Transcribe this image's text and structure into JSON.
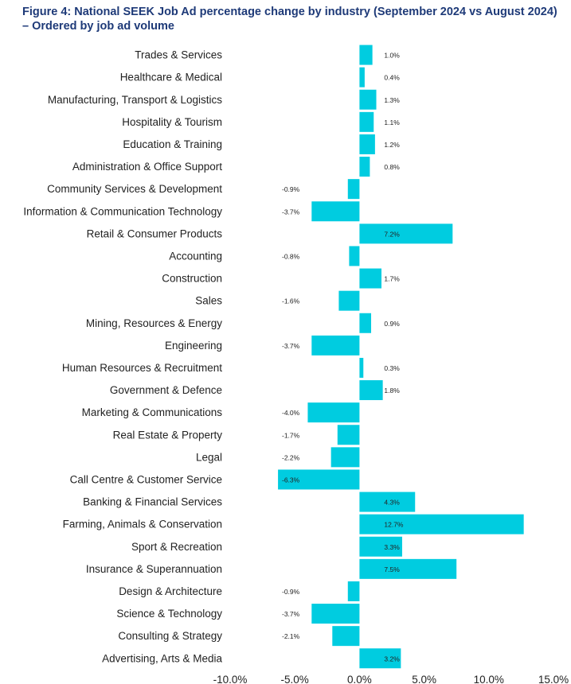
{
  "title_line1": "Figure 4: National SEEK Job Ad percentage change by industry (September 2024 vs August 2024)",
  "title_line2": "– Ordered by job ad volume",
  "colors": {
    "bar": "#00cce0",
    "title": "#1e3a78",
    "text": "#222222"
  },
  "chart_data": {
    "type": "bar",
    "orientation": "horizontal",
    "title": "Figure 4: National SEEK Job Ad percentage change by industry (September 2024 vs August 2024) – Ordered by job ad volume",
    "xlim": [
      -10,
      15
    ],
    "ticks": [
      -10,
      -5,
      0,
      5,
      10,
      15
    ],
    "tick_labels": [
      "-10.0%",
      "-5.0%",
      "0.0%",
      "5.0%",
      "10.0%",
      "15.0%"
    ],
    "categories": [
      "Trades & Services",
      "Healthcare & Medical",
      "Manufacturing, Transport & Logistics",
      "Hospitality & Tourism",
      "Education & Training",
      "Administration & Office Support",
      "Community Services & Development",
      "Information & Communication Technology",
      "Retail & Consumer Products",
      "Accounting",
      "Construction",
      "Sales",
      "Mining, Resources & Energy",
      "Engineering",
      "Human Resources & Recruitment",
      "Government & Defence",
      "Marketing & Communications",
      "Real Estate & Property",
      "Legal",
      "Call Centre & Customer Service",
      "Banking & Financial Services",
      "Farming, Animals & Conservation",
      "Sport & Recreation",
      "Insurance & Superannuation",
      "Design & Architecture",
      "Science & Technology",
      "Consulting & Strategy",
      "Advertising, Arts & Media"
    ],
    "values": [
      1.0,
      0.4,
      1.3,
      1.1,
      1.2,
      0.8,
      -0.9,
      -3.7,
      7.2,
      -0.8,
      1.7,
      -1.6,
      0.9,
      -3.7,
      0.3,
      1.8,
      -4.0,
      -1.7,
      -2.2,
      -6.3,
      4.3,
      12.7,
      3.3,
      7.5,
      -0.9,
      -3.7,
      -2.1,
      3.2
    ],
    "value_labels": [
      "1.0%",
      "0.4%",
      "1.3%",
      "1.1%",
      "1.2%",
      "0.8%",
      "-0.9%",
      "-3.7%",
      "7.2%",
      "-0.8%",
      "1.7%",
      "-1.6%",
      "0.9%",
      "-3.7%",
      "0.3%",
      "1.8%",
      "-4.0%",
      "-1.7%",
      "-2.2%",
      "-6.3%",
      "4.3%",
      "12.7%",
      "3.3%",
      "7.5%",
      "-0.9%",
      "-3.7%",
      "-2.1%",
      "3.2%"
    ]
  }
}
